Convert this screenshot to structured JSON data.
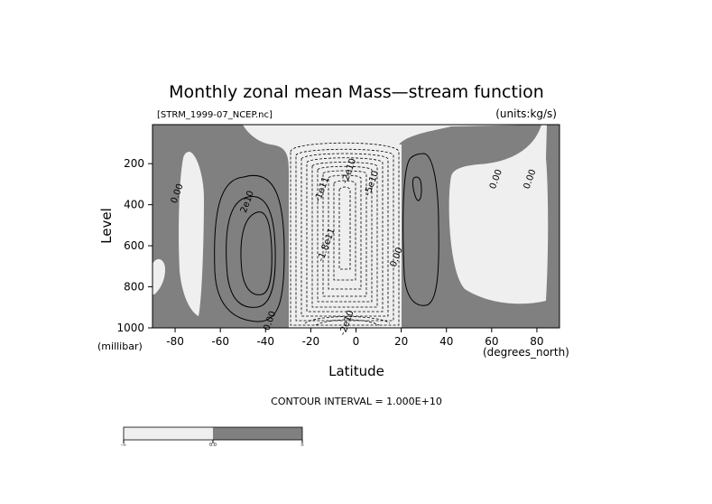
{
  "chart_data": {
    "type": "heatmap",
    "title": "Monthly zonal mean Mass—stream function",
    "file_label": "[STRM_1999-07_NCEP.nc]",
    "units_label": "(units:kg/s)",
    "xlabel": "Latitude",
    "ylabel": "Level",
    "x_units": "(degrees_north)",
    "y_units": "(millibar)",
    "xlim": [
      -90,
      90
    ],
    "ylim": [
      1000,
      10
    ],
    "x_ticks": [
      -80,
      -60,
      -40,
      -20,
      0,
      20,
      40,
      60,
      80
    ],
    "y_ticks": [
      200,
      400,
      600,
      800,
      1000
    ],
    "contour_interval_text": "CONTOUR INTERVAL = 1.000E+10",
    "contour_labels": [
      {
        "text": "0.00",
        "lat": -78,
        "lev": 350
      },
      {
        "text": "2e10",
        "lat": -47,
        "lev": 390
      },
      {
        "text": "0.00",
        "lat": -37,
        "lev": 970
      },
      {
        "text": "-1.8e11",
        "lat": -12,
        "lev": 600
      },
      {
        "text": "-1e11",
        "lat": -14,
        "lev": 330
      },
      {
        "text": "-2e10",
        "lat": -3,
        "lev": 980
      },
      {
        "text": "-2e10",
        "lat": -2,
        "lev": 240
      },
      {
        "text": "-5e10",
        "lat": 8,
        "lev": 300
      },
      {
        "text": "0.00",
        "lat": 19,
        "lev": 660
      },
      {
        "text": "0.00",
        "lat": 63,
        "lev": 280
      },
      {
        "text": "0.00",
        "lat": 78,
        "lev": 280
      }
    ],
    "legend": {
      "placement": "bottom-left",
      "labels": [
        "-∞",
        "0.0",
        "∞"
      ],
      "fills": [
        "#efefef",
        "#808080"
      ]
    },
    "colors": {
      "negative": "#efefef",
      "positive": "#808080"
    }
  }
}
